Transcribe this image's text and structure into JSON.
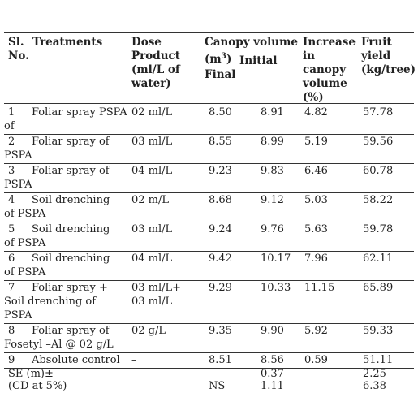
{
  "table": {
    "headers": {
      "sl": [
        "Sl.",
        "No."
      ],
      "treatments": "Treatments",
      "dose": [
        "Dose",
        "Product",
        "(ml/L of",
        "water)"
      ],
      "canopy_line1": "Canopy volume",
      "canopy_unit_base": "(m",
      "canopy_unit_sup": "3",
      "canopy_unit_close": ")",
      "canopy_initial": "Initial",
      "canopy_final": "Final",
      "increase": [
        "Increase",
        "in",
        "canopy",
        "volume",
        "(%)"
      ],
      "yield": [
        "Fruit",
        "yield",
        "(kg/tree)"
      ]
    },
    "rows": [
      {
        "sl": "1",
        "treatment": [
          "Foliar spray PSPA",
          "of"
        ],
        "dose": [
          "02 ml/L"
        ],
        "initial": "8.50",
        "final": "8.91",
        "increase": "4.82",
        "yield": "57.78"
      },
      {
        "sl": "2",
        "treatment": [
          "Foliar spray of",
          "PSPA"
        ],
        "dose": [
          "03 ml/L"
        ],
        "initial": "8.55",
        "final": "8.99",
        "increase": "5.19",
        "yield": "59.56"
      },
      {
        "sl": "3",
        "treatment": [
          "Foliar spray of",
          "PSPA"
        ],
        "dose": [
          "04 ml/L"
        ],
        "initial": "9.23",
        "final": "9.83",
        "increase": "6.46",
        "yield": "60.78"
      },
      {
        "sl": "4",
        "treatment": [
          "Soil drenching",
          "of PSPA"
        ],
        "dose": [
          "02 m/L"
        ],
        "initial": "8.68",
        "final": "9.12",
        "increase": "5.03",
        "yield": "58.22"
      },
      {
        "sl": "5",
        "treatment": [
          "Soil drenching",
          "of PSPA"
        ],
        "dose": [
          "03 ml/L"
        ],
        "initial": "9.24",
        "final": "9.76",
        "increase": "5.63",
        "yield": "59.78"
      },
      {
        "sl": "6",
        "treatment": [
          "Soil drenching",
          "of PSPA"
        ],
        "dose": [
          "04 ml/L"
        ],
        "initial": "9.42",
        "final": "10.17",
        "increase": "7.96",
        "yield": "62.11"
      },
      {
        "sl": "7",
        "treatment": [
          "Foliar spray +",
          "Soil drenching of",
          "PSPA"
        ],
        "dose": [
          "03 ml/L+",
          "03 ml/L"
        ],
        "initial": "9.29",
        "final": "10.33",
        "increase": "11.15",
        "yield": "65.89"
      },
      {
        "sl": "8",
        "treatment": [
          "Foliar spray of",
          "Fosetyl –Al @ 02 g/L"
        ],
        "dose": [
          "02 g/L"
        ],
        "initial": "9.35",
        "final": "9.90",
        "increase": "5.92",
        "yield": "59.33"
      },
      {
        "sl": "9",
        "treatment": [
          "Absolute control"
        ],
        "dose": [
          "–"
        ],
        "initial": "8.51",
        "final": "8.56",
        "increase": "0.59",
        "yield": "51.11"
      }
    ],
    "footer": [
      {
        "label": "SE (m)±",
        "initial": "–",
        "final": "0.37",
        "increase": "",
        "yield": "2.25"
      },
      {
        "label": "(CD at 5%)",
        "initial": "NS",
        "final": "1.11",
        "increase": "",
        "yield": "6.38"
      }
    ]
  }
}
